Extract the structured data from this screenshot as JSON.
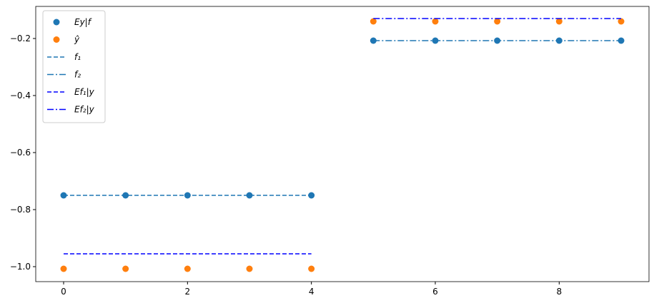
{
  "chart_data": {
    "type": "line",
    "xlim": [
      -0.45,
      9.45
    ],
    "ylim": [
      -1.0525,
      -0.0875
    ],
    "xticks": [
      0,
      2,
      4,
      6,
      8
    ],
    "yticks": [
      {
        "value": -1.0,
        "label": "−1.0"
      },
      {
        "value": -0.8,
        "label": "−0.8"
      },
      {
        "value": -0.6,
        "label": "−0.6"
      },
      {
        "value": -0.4,
        "label": "−0.4"
      },
      {
        "value": -0.2,
        "label": "−0.2"
      }
    ],
    "legend": "upper left",
    "series": [
      {
        "name": "Ey|f",
        "style": "marker",
        "color": "#1f77b4",
        "x": [
          0,
          1,
          2,
          3,
          4,
          5,
          6,
          7,
          8,
          9
        ],
        "values": [
          -0.75,
          -0.75,
          -0.75,
          -0.75,
          -0.75,
          -0.2075,
          -0.2075,
          -0.2075,
          -0.2075,
          -0.2075
        ]
      },
      {
        "name": "ŷ",
        "style": "marker",
        "color": "#ff7f0e",
        "x": [
          0,
          1,
          2,
          3,
          4,
          5,
          6,
          7,
          8,
          9
        ],
        "values": [
          -1.0075,
          -1.0075,
          -1.0075,
          -1.0075,
          -1.0075,
          -0.14,
          -0.14,
          -0.14,
          -0.14,
          -0.14
        ]
      },
      {
        "name": "f₁",
        "style": "dashed",
        "color": "#1f77b4",
        "x": [
          0,
          1,
          2,
          3,
          4
        ],
        "values": [
          -0.75,
          -0.75,
          -0.75,
          -0.75,
          -0.75
        ]
      },
      {
        "name": "f₂",
        "style": "dashdot",
        "color": "#1f77b4",
        "x": [
          5,
          6,
          7,
          8,
          9
        ],
        "values": [
          -0.2075,
          -0.2075,
          -0.2075,
          -0.2075,
          -0.2075
        ]
      },
      {
        "name": "Ef₁|y",
        "style": "dashed",
        "color": "#0000ff",
        "x": [
          0,
          1,
          2,
          3,
          4
        ],
        "values": [
          -0.955,
          -0.955,
          -0.955,
          -0.955,
          -0.955
        ]
      },
      {
        "name": "Ef₂|y",
        "style": "dashdot",
        "color": "#0000ff",
        "x": [
          5,
          6,
          7,
          8,
          9
        ],
        "values": [
          -0.13,
          -0.13,
          -0.13,
          -0.13,
          -0.13
        ]
      }
    ]
  }
}
